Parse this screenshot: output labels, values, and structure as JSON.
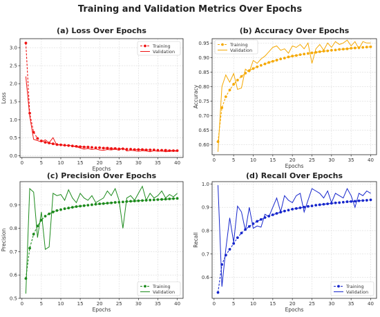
{
  "figure_title": "Training and Validation Metrics Over Epochs",
  "legend_labels": {
    "training": "Training",
    "validation": "Validation"
  },
  "chart_data": [
    {
      "type": "line",
      "title": "(a) Loss Over Epochs",
      "xlabel": "Epochs",
      "ylabel": "Loss",
      "xlim": [
        -0.5,
        41.5
      ],
      "ylim": [
        -0.05,
        3.25
      ],
      "xticks": [
        0,
        5,
        10,
        15,
        20,
        25,
        30,
        35,
        40
      ],
      "yticks": [
        0.0,
        0.5,
        1.0,
        1.5,
        2.0,
        2.5,
        3.0
      ],
      "ytick_labels": [
        "0.0",
        "0.5",
        "1.0",
        "1.5",
        "2.0",
        "2.5",
        "3.0"
      ],
      "legend_position": "upper right",
      "color": "#ee1111",
      "grid": true,
      "x": [
        1,
        2,
        3,
        4,
        5,
        6,
        7,
        8,
        9,
        10,
        11,
        12,
        13,
        14,
        15,
        16,
        17,
        18,
        19,
        20,
        21,
        22,
        23,
        24,
        25,
        26,
        27,
        28,
        29,
        30,
        31,
        32,
        33,
        34,
        35,
        36,
        37,
        38,
        39,
        40
      ],
      "series": [
        {
          "name": "Training",
          "style": "dashed-marker",
          "values": [
            3.13,
            1.18,
            0.65,
            0.48,
            0.41,
            0.37,
            0.35,
            0.33,
            0.31,
            0.3,
            0.29,
            0.28,
            0.27,
            0.26,
            0.25,
            0.24,
            0.24,
            0.23,
            0.22,
            0.22,
            0.21,
            0.21,
            0.2,
            0.2,
            0.19,
            0.19,
            0.18,
            0.18,
            0.17,
            0.17,
            0.17,
            0.16,
            0.16,
            0.16,
            0.15,
            0.15,
            0.15,
            0.14,
            0.14,
            0.14
          ]
        },
        {
          "name": "Validation",
          "style": "solid",
          "values": [
            2.2,
            1.1,
            0.45,
            0.42,
            0.38,
            0.44,
            0.36,
            0.5,
            0.28,
            0.32,
            0.27,
            0.3,
            0.26,
            0.25,
            0.21,
            0.18,
            0.2,
            0.17,
            0.19,
            0.16,
            0.15,
            0.17,
            0.16,
            0.18,
            0.15,
            0.22,
            0.13,
            0.15,
            0.14,
            0.12,
            0.14,
            0.13,
            0.11,
            0.14,
            0.12,
            0.13,
            0.11,
            0.12,
            0.13,
            0.12
          ]
        }
      ]
    },
    {
      "type": "line",
      "title": "(b) Accuracy Over Epochs",
      "xlabel": "Epochs",
      "ylabel": "Accuracy",
      "xlim": [
        -0.5,
        41.5
      ],
      "ylim": [
        0.565,
        0.965
      ],
      "xticks": [
        0,
        5,
        10,
        15,
        20,
        25,
        30,
        35,
        40
      ],
      "yticks": [
        0.6,
        0.65,
        0.7,
        0.75,
        0.8,
        0.85,
        0.9,
        0.95
      ],
      "ytick_labels": [
        "0.60",
        "0.65",
        "0.70",
        "0.75",
        "0.80",
        "0.85",
        "0.90",
        "0.95"
      ],
      "legend_position": "upper left",
      "color": "#f5a800",
      "grid": true,
      "x": [
        1,
        2,
        3,
        4,
        5,
        6,
        7,
        8,
        9,
        10,
        11,
        12,
        13,
        14,
        15,
        16,
        17,
        18,
        19,
        20,
        21,
        22,
        23,
        24,
        25,
        26,
        27,
        28,
        29,
        30,
        31,
        32,
        33,
        34,
        35,
        36,
        37,
        38,
        39,
        40
      ],
      "series": [
        {
          "name": "Training",
          "style": "dashed-marker",
          "values": [
            0.61,
            0.727,
            0.765,
            0.788,
            0.808,
            0.822,
            0.835,
            0.846,
            0.855,
            0.862,
            0.868,
            0.873,
            0.878,
            0.883,
            0.887,
            0.891,
            0.895,
            0.898,
            0.902,
            0.905,
            0.907,
            0.91,
            0.912,
            0.914,
            0.916,
            0.918,
            0.92,
            0.922,
            0.923,
            0.925,
            0.926,
            0.928,
            0.929,
            0.93,
            0.932,
            0.933,
            0.934,
            0.935,
            0.936,
            0.937
          ]
        },
        {
          "name": "Validation",
          "style": "solid",
          "values": [
            0.575,
            0.8,
            0.84,
            0.815,
            0.845,
            0.79,
            0.795,
            0.86,
            0.85,
            0.89,
            0.88,
            0.895,
            0.905,
            0.92,
            0.935,
            0.94,
            0.925,
            0.93,
            0.915,
            0.94,
            0.935,
            0.945,
            0.93,
            0.95,
            0.88,
            0.93,
            0.945,
            0.925,
            0.95,
            0.935,
            0.955,
            0.945,
            0.95,
            0.96,
            0.94,
            0.955,
            0.93,
            0.955,
            0.95,
            0.95
          ]
        }
      ]
    },
    {
      "type": "line",
      "title": "(c) Precision Over Epochs",
      "xlabel": "Epochs",
      "ylabel": "Precision",
      "xlim": [
        -0.5,
        41.5
      ],
      "ylim": [
        0.5,
        1.0
      ],
      "xticks": [
        0,
        5,
        10,
        15,
        20,
        25,
        30,
        35,
        40
      ],
      "yticks": [
        0.5,
        0.6,
        0.7,
        0.8,
        0.9
      ],
      "ytick_labels": [
        "0.5",
        "0.6",
        "0.7",
        "0.8",
        "0.9"
      ],
      "legend_position": "lower right",
      "color": "#1b8a1b",
      "grid": true,
      "x": [
        1,
        2,
        3,
        4,
        5,
        6,
        7,
        8,
        9,
        10,
        11,
        12,
        13,
        14,
        15,
        16,
        17,
        18,
        19,
        20,
        21,
        22,
        23,
        24,
        25,
        26,
        27,
        28,
        29,
        30,
        31,
        32,
        33,
        34,
        35,
        36,
        37,
        38,
        39,
        40
      ],
      "series": [
        {
          "name": "Training",
          "style": "dashed-marker",
          "values": [
            0.585,
            0.715,
            0.775,
            0.81,
            0.835,
            0.852,
            0.862,
            0.87,
            0.876,
            0.88,
            0.884,
            0.887,
            0.89,
            0.893,
            0.895,
            0.897,
            0.899,
            0.901,
            0.903,
            0.905,
            0.906,
            0.908,
            0.909,
            0.911,
            0.912,
            0.913,
            0.915,
            0.916,
            0.917,
            0.918,
            0.919,
            0.92,
            0.921,
            0.922,
            0.923,
            0.924,
            0.925,
            0.926,
            0.927,
            0.928
          ]
        },
        {
          "name": "Validation",
          "style": "solid",
          "values": [
            0.52,
            0.97,
            0.955,
            0.76,
            0.87,
            0.71,
            0.72,
            0.95,
            0.94,
            0.945,
            0.92,
            0.965,
            0.93,
            0.91,
            0.95,
            0.93,
            0.92,
            0.94,
            0.91,
            0.92,
            0.93,
            0.96,
            0.94,
            0.97,
            0.92,
            0.8,
            0.93,
            0.94,
            0.92,
            0.95,
            0.98,
            0.92,
            0.95,
            0.93,
            0.94,
            0.96,
            0.93,
            0.945,
            0.935,
            0.95
          ]
        }
      ]
    },
    {
      "type": "line",
      "title": "(d) Recall Over Epochs",
      "xlabel": "Epochs",
      "ylabel": "Recall",
      "xlim": [
        -0.5,
        41.5
      ],
      "ylim": [
        0.51,
        1.01
      ],
      "xticks": [
        0,
        5,
        10,
        15,
        20,
        25,
        30,
        35,
        40
      ],
      "yticks": [
        0.6,
        0.7,
        0.8,
        0.9,
        1.0
      ],
      "ytick_labels": [
        "0.6",
        "0.7",
        "0.8",
        "0.9",
        "1.0"
      ],
      "legend_position": "lower right",
      "color": "#1525cc",
      "grid": true,
      "x": [
        1,
        2,
        3,
        4,
        5,
        6,
        7,
        8,
        9,
        10,
        11,
        12,
        13,
        14,
        15,
        16,
        17,
        18,
        19,
        20,
        21,
        22,
        23,
        24,
        25,
        26,
        27,
        28,
        29,
        30,
        31,
        32,
        33,
        34,
        35,
        36,
        37,
        38,
        39,
        40
      ],
      "series": [
        {
          "name": "Training",
          "style": "dashed-marker",
          "values": [
            0.535,
            0.655,
            0.695,
            0.72,
            0.745,
            0.77,
            0.79,
            0.805,
            0.818,
            0.83,
            0.84,
            0.848,
            0.856,
            0.862,
            0.868,
            0.874,
            0.879,
            0.884,
            0.888,
            0.892,
            0.895,
            0.898,
            0.901,
            0.904,
            0.906,
            0.909,
            0.911,
            0.913,
            0.915,
            0.917,
            0.919,
            0.92,
            0.922,
            0.924,
            0.925,
            0.926,
            0.928,
            0.929,
            0.93,
            0.932
          ]
        },
        {
          "name": "Validation",
          "style": "solid",
          "values": [
            0.995,
            0.56,
            0.72,
            0.855,
            0.75,
            0.905,
            0.88,
            0.8,
            0.9,
            0.81,
            0.82,
            0.815,
            0.87,
            0.86,
            0.9,
            0.94,
            0.88,
            0.95,
            0.93,
            0.92,
            0.95,
            0.96,
            0.88,
            0.93,
            0.98,
            0.97,
            0.96,
            0.94,
            0.97,
            0.92,
            0.96,
            0.95,
            0.94,
            0.98,
            0.95,
            0.9,
            0.96,
            0.95,
            0.97,
            0.96
          ]
        }
      ]
    }
  ]
}
